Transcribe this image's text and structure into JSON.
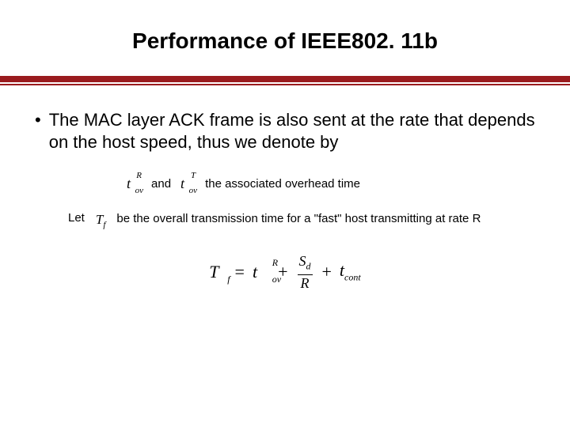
{
  "title": "Performance of IEEE802. 11b",
  "rule": {
    "thick_color": "#9a1b1e",
    "thin_color": "#9a1b1e"
  },
  "bullet": {
    "marker": "•",
    "text": "The MAC layer ACK frame is also sent at the rate that depends on the host speed, thus we denote by"
  },
  "line2": {
    "sym1": {
      "base": "t",
      "sup": "R",
      "sub": "ov"
    },
    "and": "and",
    "sym2": {
      "base": "t",
      "sup": "T",
      "sub": "ov"
    },
    "tail": "the associated overhead time"
  },
  "line3": {
    "let": "Let",
    "sym": {
      "base": "T",
      "sub": "f"
    },
    "text": "be the overall transmission time for a \"fast\" host transmitting at rate R"
  },
  "equation": {
    "lhs": {
      "base": "T",
      "sub": "f"
    },
    "eq": "=",
    "t1": {
      "base": "t",
      "sup": "R",
      "sub": "ov"
    },
    "plus1": "+",
    "frac": {
      "num_base": "S",
      "num_sub": "d",
      "den": "R"
    },
    "plus2": "+",
    "t2": {
      "base": "t",
      "sub": "cont"
    }
  },
  "colors": {
    "text": "#000000",
    "bg": "#ffffff"
  }
}
